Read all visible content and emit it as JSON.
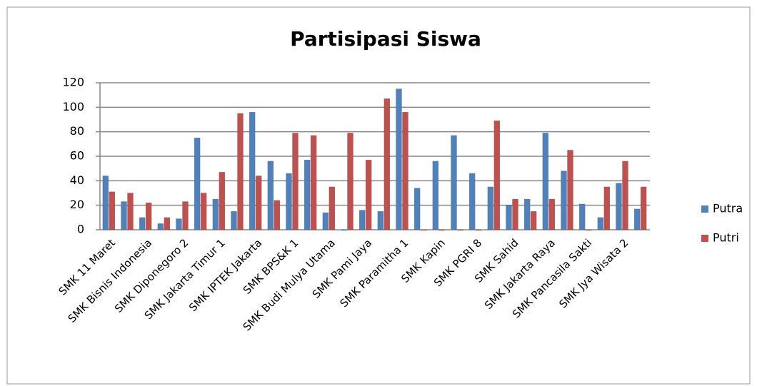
{
  "chart_data": {
    "type": "bar",
    "title": "Partisipasi Siswa",
    "categories": [
      "SMK 11 Maret",
      null,
      "SMK Bisnis Indonesia",
      null,
      "SMK Diponegoro 2",
      null,
      "SMK Jakarta Timur 1",
      null,
      "SMK IPTEK Jakarta",
      null,
      "SMK BPS&K 1",
      null,
      "SMK Budi Mulya Utama",
      null,
      "SMK Pami Jaya",
      null,
      "SMK Paramitha 1",
      null,
      "SMK Kapin",
      null,
      "SMK PGRI 8",
      null,
      "SMK Sahid",
      null,
      "SMK Jakarta Raya",
      null,
      "SMK Pancasila Sakti",
      null,
      "SMK Jya Wisata 2",
      null
    ],
    "series": [
      {
        "name": "Putra",
        "color": "#4f81bd",
        "values": [
          44,
          23,
          10,
          5,
          9,
          75,
          25,
          15,
          96,
          56,
          46,
          57,
          14,
          0,
          16,
          15,
          115,
          34,
          56,
          77,
          46,
          35,
          20,
          25,
          79,
          48,
          21,
          10,
          38,
          17
        ]
      },
      {
        "name": "Putri",
        "color": "#c0504d",
        "values": [
          31,
          30,
          22,
          10,
          23,
          30,
          47,
          95,
          44,
          24,
          79,
          77,
          35,
          79,
          57,
          107,
          96,
          0,
          0,
          0,
          0,
          89,
          25,
          15,
          25,
          65,
          0,
          35,
          56,
          35
        ]
      }
    ],
    "ylim": [
      0,
      120
    ],
    "yticks": [
      0,
      20,
      40,
      60,
      80,
      100,
      120
    ],
    "grid": true,
    "legend": "right"
  }
}
